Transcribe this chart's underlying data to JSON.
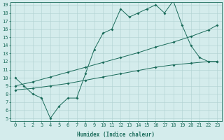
{
  "line1_x": [
    0,
    1,
    2,
    3,
    4,
    5,
    6,
    7,
    8,
    9,
    10,
    11,
    12,
    13,
    14,
    15,
    16,
    17,
    18,
    19,
    20,
    21,
    22,
    23
  ],
  "line1_y": [
    10,
    9,
    8,
    7.5,
    5,
    6.5,
    7.5,
    7.5,
    10.5,
    13.5,
    15.5,
    16,
    18.5,
    17.5,
    18,
    18.5,
    19,
    18,
    19.5,
    16.5,
    14,
    12.5,
    12,
    12
  ],
  "line2_x": [
    0,
    2,
    4,
    6,
    8,
    10,
    12,
    14,
    16,
    18,
    20,
    22,
    23
  ],
  "line2_y": [
    9.0,
    9.5,
    10.1,
    10.7,
    11.3,
    11.9,
    12.5,
    13.1,
    13.8,
    14.4,
    15.1,
    15.9,
    16.5
  ],
  "line3_x": [
    0,
    2,
    4,
    6,
    8,
    10,
    12,
    14,
    16,
    18,
    20,
    22,
    23
  ],
  "line3_y": [
    8.5,
    8.7,
    9.0,
    9.3,
    9.7,
    10.1,
    10.5,
    10.9,
    11.3,
    11.6,
    11.8,
    12.0,
    12.0
  ],
  "line_color": "#1a6b5a",
  "bg_color": "#d4ecec",
  "grid_color": "#b0d0d0",
  "xlabel": "Humidex (Indice chaleur)",
  "xlim": [
    -0.5,
    23.5
  ],
  "ylim": [
    4.7,
    19.3
  ],
  "xticks": [
    0,
    1,
    2,
    3,
    4,
    5,
    6,
    7,
    8,
    9,
    10,
    11,
    12,
    13,
    14,
    15,
    16,
    17,
    18,
    19,
    20,
    21,
    22,
    23
  ],
  "yticks": [
    5,
    6,
    7,
    8,
    9,
    10,
    11,
    12,
    13,
    14,
    15,
    16,
    17,
    18,
    19
  ],
  "label_fontsize": 5.5,
  "tick_fontsize": 5.0
}
